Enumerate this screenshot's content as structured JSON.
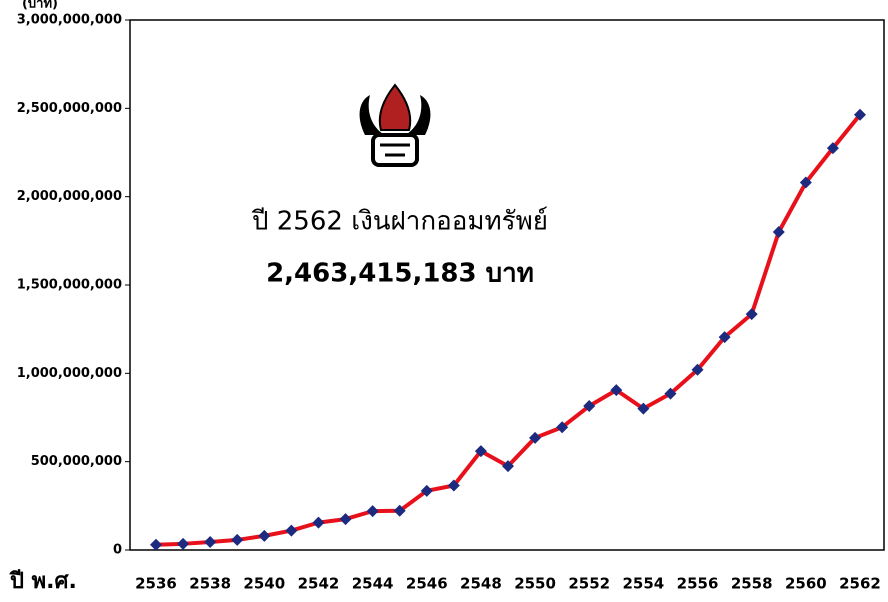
{
  "chart_data": {
    "type": "line",
    "y_axis_label": "(บาท)",
    "x_axis_label": "ปี พ.ศ.",
    "annotations": [
      "ปี 2562 เงินฝากออมทรัพย์",
      "2,463,415,183 บาท"
    ],
    "categories": [
      "2536",
      null,
      "2538",
      null,
      "2540",
      null,
      "2542",
      null,
      "2544",
      null,
      "2546",
      null,
      "2548",
      null,
      "2550",
      null,
      "2552",
      null,
      "2554",
      null,
      "2556",
      null,
      "2558",
      null,
      "2560",
      null,
      "2562"
    ],
    "series": [
      {
        "name": "เงินฝากออมทรัพย์",
        "color": "#e8101a",
        "marker_color": "#1c2a80",
        "values": [
          30000000,
          35000000,
          45000000,
          57000000,
          80000000,
          110000000,
          155000000,
          175000000,
          220000000,
          222000000,
          335000000,
          365000000,
          560000000,
          475000000,
          635000000,
          695000000,
          815000000,
          905000000,
          800000000,
          885000000,
          1020000000,
          1205000000,
          1335000000,
          1800000000,
          2080000000,
          2275000000,
          2463415183
        ]
      }
    ],
    "ylim": [
      0,
      3000000000
    ],
    "yticks": [
      0,
      {
        "value": 500000000,
        "label": "500,000,000"
      },
      {
        "value": 1000000000,
        "label": "1,000,000,000"
      },
      {
        "value": 1500000000,
        "label": "1,500,000,000"
      },
      {
        "value": 2000000000,
        "label": "2,000,000,000"
      },
      {
        "value": 2500000000,
        "label": "2,500,000,000"
      },
      {
        "value": 3000000000,
        "label": "3,000,000,000"
      }
    ],
    "grid": false
  }
}
